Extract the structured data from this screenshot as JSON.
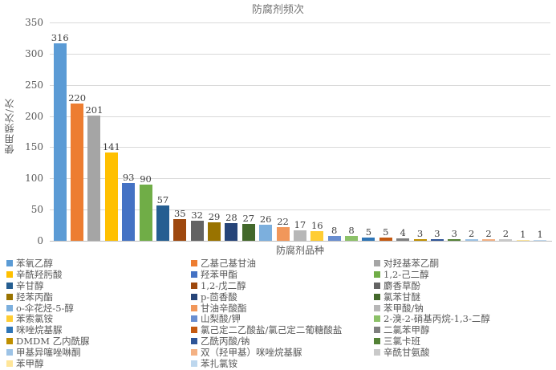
{
  "chart_data": {
    "type": "bar",
    "title": "防腐剂频次",
    "xlabel": "防腐剂品种",
    "ylabel": "使用频次/次",
    "ylim": [
      0,
      350
    ],
    "yticks": [
      0,
      50,
      100,
      150,
      200,
      250,
      300,
      350
    ],
    "grid": true,
    "data_labels": true,
    "legend_position": "bottom",
    "legend_columns": 3,
    "series": [
      {
        "name": "苯氧乙醇",
        "value": 316,
        "color": "#5B9BD5"
      },
      {
        "name": "乙基己基甘油",
        "value": 220,
        "color": "#ED7D31"
      },
      {
        "name": "对羟基苯乙酮",
        "value": 201,
        "color": "#A5A5A5"
      },
      {
        "name": "辛酰羟肟酸",
        "value": 141,
        "color": "#FFC000"
      },
      {
        "name": "羟苯甲酯",
        "value": 93,
        "color": "#4472C4"
      },
      {
        "name": "1,2-己二醇",
        "value": 90,
        "color": "#70AD47"
      },
      {
        "name": "辛甘醇",
        "value": 57,
        "color": "#255E91"
      },
      {
        "name": "1,2-戊二醇",
        "value": 35,
        "color": "#9E480E"
      },
      {
        "name": "麝香草酚",
        "value": 32,
        "color": "#636363"
      },
      {
        "name": "羟苯丙酯",
        "value": 29,
        "color": "#997300"
      },
      {
        "name": "p-茴香酸",
        "value": 28,
        "color": "#264478"
      },
      {
        "name": "氯苯甘醚",
        "value": 27,
        "color": "#43682B"
      },
      {
        "name": "o-伞花烃-5-醇",
        "value": 26,
        "color": "#7CAFDD"
      },
      {
        "name": "甘油辛酸酯",
        "value": 22,
        "color": "#F1975A"
      },
      {
        "name": "苯甲酸/钠",
        "value": 17,
        "color": "#B7B7B7"
      },
      {
        "name": "苯索氯铵",
        "value": 16,
        "color": "#FFCD33"
      },
      {
        "name": "山梨酸/钾",
        "value": 8,
        "color": "#698ED0"
      },
      {
        "name": "2-溴-2-硝基丙烷-1,3-二醇",
        "value": 8,
        "color": "#8CC168"
      },
      {
        "name": "咪唑烷基脲",
        "value": 5,
        "color": "#2E75B6"
      },
      {
        "name": "氯己定二乙酸盐/氯己定二葡糖酸盐",
        "value": 5,
        "color": "#C55A11"
      },
      {
        "name": "二氯苯甲醇",
        "value": 4,
        "color": "#7F7F7F"
      },
      {
        "name": "DMDM 乙内酰脲",
        "value": 3,
        "color": "#BF8F00"
      },
      {
        "name": "乙酰丙酸/钠",
        "value": 3,
        "color": "#2F5597"
      },
      {
        "name": "三氯卡班",
        "value": 3,
        "color": "#538135"
      },
      {
        "name": "甲基异噻唑啉酮",
        "value": 2,
        "color": "#9DC3E6"
      },
      {
        "name": "双（羟甲基）咪唑烷基脲",
        "value": 2,
        "color": "#F4B183"
      },
      {
        "name": "辛酰甘氨酸",
        "value": 2,
        "color": "#C9C9C9"
      },
      {
        "name": "苯甲醇",
        "value": 1,
        "color": "#FFE699"
      },
      {
        "name": "苯扎氯铵",
        "value": 1,
        "color": "#BDD7EE"
      }
    ]
  }
}
